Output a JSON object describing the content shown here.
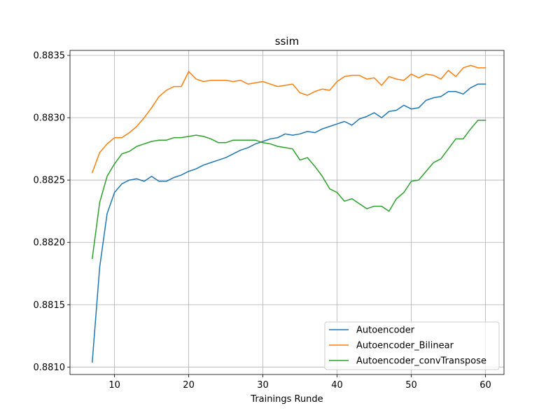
{
  "chart_data": {
    "type": "line",
    "title": "ssim",
    "xlabel": "Trainings Runde",
    "ylabel": "",
    "xlim": [
      4,
      62.5
    ],
    "ylim": [
      0.88094,
      0.88354
    ],
    "x_ticks": [
      10,
      20,
      30,
      40,
      50,
      60
    ],
    "x_tick_labels": [
      "10",
      "20",
      "30",
      "40",
      "50",
      "60"
    ],
    "y_ticks": [
      0.881,
      0.8815,
      0.882,
      0.8825,
      0.883,
      0.8835
    ],
    "y_tick_labels": [
      "0.8810",
      "0.8815",
      "0.8820",
      "0.8825",
      "0.8830",
      "0.8835"
    ],
    "grid": true,
    "legend_position": "bottom-right",
    "x": [
      7,
      8,
      9,
      10,
      11,
      12,
      13,
      14,
      15,
      16,
      17,
      18,
      19,
      20,
      21,
      22,
      23,
      24,
      25,
      26,
      27,
      28,
      29,
      30,
      31,
      32,
      33,
      34,
      35,
      36,
      37,
      38,
      39,
      40,
      41,
      42,
      43,
      44,
      45,
      46,
      47,
      48,
      49,
      50,
      51,
      52,
      53,
      54,
      55,
      56,
      57,
      58,
      59,
      60
    ],
    "series": [
      {
        "name": "Autoencoder",
        "color": "#1f77b4",
        "values": [
          0.88104,
          0.8818,
          0.88223,
          0.8824,
          0.88247,
          0.8825,
          0.88251,
          0.88249,
          0.88253,
          0.88249,
          0.88249,
          0.88252,
          0.88254,
          0.88257,
          0.88259,
          0.88262,
          0.88264,
          0.88266,
          0.88268,
          0.88271,
          0.88274,
          0.88276,
          0.88279,
          0.88281,
          0.88283,
          0.88284,
          0.88287,
          0.88286,
          0.88287,
          0.88289,
          0.88288,
          0.88291,
          0.88293,
          0.88295,
          0.88297,
          0.88294,
          0.88299,
          0.88301,
          0.88304,
          0.883,
          0.88305,
          0.88306,
          0.8831,
          0.88307,
          0.88308,
          0.88314,
          0.88316,
          0.88317,
          0.88321,
          0.88321,
          0.88319,
          0.88324,
          0.88327,
          0.88327
        ]
      },
      {
        "name": "Autoencoder_Bilinear",
        "color": "#ff7f0e",
        "values": [
          0.88256,
          0.88272,
          0.88279,
          0.88284,
          0.88284,
          0.88288,
          0.88293,
          0.883,
          0.88308,
          0.88317,
          0.88322,
          0.88325,
          0.88325,
          0.88337,
          0.88331,
          0.88329,
          0.8833,
          0.8833,
          0.8833,
          0.88329,
          0.8833,
          0.88327,
          0.88328,
          0.88329,
          0.88327,
          0.88325,
          0.88326,
          0.88327,
          0.8832,
          0.88318,
          0.88321,
          0.88323,
          0.88322,
          0.88329,
          0.88333,
          0.88334,
          0.88334,
          0.88331,
          0.88332,
          0.88326,
          0.88333,
          0.88331,
          0.8833,
          0.88335,
          0.88332,
          0.88335,
          0.88334,
          0.88331,
          0.88338,
          0.88333,
          0.8834,
          0.88342,
          0.8834,
          0.8834
        ]
      },
      {
        "name": "Autoencoder_convTranspose",
        "color": "#2ca02c",
        "values": [
          0.88187,
          0.88232,
          0.88253,
          0.88263,
          0.88271,
          0.88273,
          0.88277,
          0.88279,
          0.88281,
          0.88282,
          0.88282,
          0.88284,
          0.88284,
          0.88285,
          0.88286,
          0.88285,
          0.88283,
          0.8828,
          0.8828,
          0.88282,
          0.88282,
          0.88282,
          0.88282,
          0.8828,
          0.88279,
          0.88277,
          0.88276,
          0.88275,
          0.88266,
          0.88268,
          0.88261,
          0.88253,
          0.88243,
          0.8824,
          0.88233,
          0.88235,
          0.88231,
          0.88227,
          0.88229,
          0.88229,
          0.88225,
          0.88235,
          0.8824,
          0.88249,
          0.8825,
          0.88257,
          0.88264,
          0.88267,
          0.88275,
          0.88283,
          0.88283,
          0.88291,
          0.88298,
          0.88298
        ]
      }
    ]
  }
}
